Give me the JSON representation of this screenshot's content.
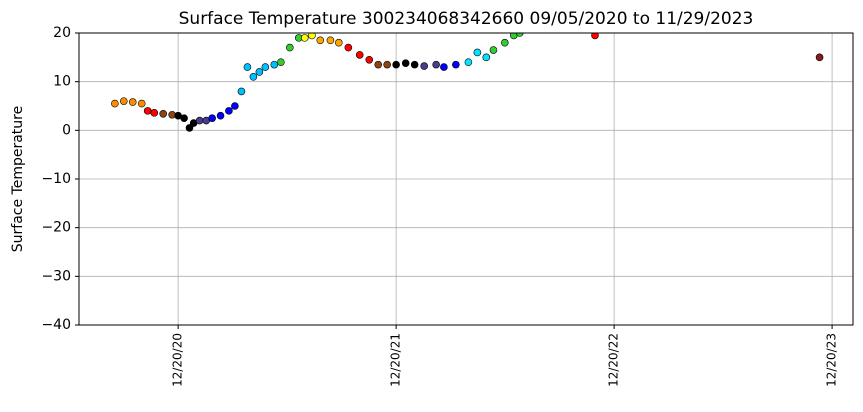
{
  "chart_data": {
    "type": "scatter",
    "title": "Surface Temperature 300234068342660  09/05/2020 to 11/29/2023",
    "y_label": "Surface Temperature",
    "xlim": [
      "2020-07-07",
      "2024-01-24"
    ],
    "xticks": [
      {
        "value": "2020-12-20",
        "label": "12/20/20"
      },
      {
        "value": "2021-12-20",
        "label": "12/20/21"
      },
      {
        "value": "2022-12-20",
        "label": "12/20/22"
      },
      {
        "value": "2023-12-20",
        "label": "12/20/23"
      }
    ],
    "ylim": [
      -40,
      20
    ],
    "yticks": [
      {
        "value": -40,
        "label": "−40"
      },
      {
        "value": -30,
        "label": "−30"
      },
      {
        "value": -20,
        "label": "−20"
      },
      {
        "value": -10,
        "label": "−10"
      },
      0,
      10,
      20
    ],
    "grid": true,
    "series": [
      {
        "color": "#ff8c00",
        "x": [
          "2020-09-05",
          "2020-09-20",
          "2020-10-05",
          "2020-10-20"
        ],
        "values": [
          5.5,
          6,
          5.8,
          5.5
        ]
      },
      {
        "color": "#ff0000",
        "x": [
          "2020-10-30",
          "2020-11-10"
        ],
        "values": [
          4,
          3.6
        ]
      },
      {
        "color": "#8b4513",
        "x": [
          "2020-11-25",
          "2020-12-10"
        ],
        "values": [
          3.4,
          3.2
        ]
      },
      {
        "color": "#000000",
        "x": [
          "2020-12-20",
          "2020-12-30",
          "2021-01-08",
          "2021-01-15"
        ],
        "values": [
          3,
          2.5,
          0.5,
          1.5
        ]
      },
      {
        "color": "#483d8b",
        "x": [
          "2021-01-25",
          "2021-02-05"
        ],
        "values": [
          2,
          2
        ]
      },
      {
        "color": "#0000ff",
        "x": [
          "2021-02-15",
          "2021-03-01",
          "2021-03-15",
          "2021-03-25"
        ],
        "values": [
          2.5,
          3,
          4,
          5
        ]
      },
      {
        "color": "#00bfff",
        "x": [
          "2021-04-05",
          "2021-04-15",
          "2021-04-25",
          "2021-05-05",
          "2021-05-15",
          "2021-05-30"
        ],
        "values": [
          8,
          13,
          11,
          12,
          13,
          13.5
        ]
      },
      {
        "color": "#32cd32",
        "x": [
          "2021-06-10",
          "2021-06-25",
          "2021-07-10"
        ],
        "values": [
          14,
          17,
          19
        ]
      },
      {
        "color": "#ffff00",
        "x": [
          "2021-07-20",
          "2021-08-01"
        ],
        "values": [
          19,
          19.5
        ]
      },
      {
        "color": "#ffa500",
        "x": [
          "2021-08-15",
          "2021-09-01",
          "2021-09-15"
        ],
        "values": [
          18.5,
          18.5,
          18
        ]
      },
      {
        "color": "#ff0000",
        "x": [
          "2021-10-01",
          "2021-10-20",
          "2021-11-05"
        ],
        "values": [
          17,
          15.5,
          14.5
        ]
      },
      {
        "color": "#8b4513",
        "x": [
          "2021-11-20",
          "2021-12-05"
        ],
        "values": [
          13.5,
          13.5
        ]
      },
      {
        "color": "#000000",
        "x": [
          "2021-12-20",
          "2022-01-05",
          "2022-01-20"
        ],
        "values": [
          13.5,
          13.8,
          13.5
        ]
      },
      {
        "color": "#483d8b",
        "x": [
          "2022-02-05",
          "2022-02-25"
        ],
        "values": [
          13.2,
          13.5
        ]
      },
      {
        "color": "#0000ff",
        "x": [
          "2022-03-10",
          "2022-03-30"
        ],
        "values": [
          13,
          13.5
        ]
      },
      {
        "color": "#00e5ff",
        "x": [
          "2022-04-20",
          "2022-05-05",
          "2022-05-20"
        ],
        "values": [
          14,
          16,
          15
        ]
      },
      {
        "color": "#32cd32",
        "x": [
          "2022-06-01",
          "2022-06-20",
          "2022-07-05",
          "2022-07-15"
        ],
        "values": [
          16.5,
          18,
          19.5,
          20
        ]
      },
      {
        "color": "#ff0000",
        "x": [
          "2022-11-18"
        ],
        "values": [
          19.5
        ]
      },
      {
        "color": "#8b1a1a",
        "x": [
          "2023-11-29"
        ],
        "values": [
          15
        ]
      }
    ]
  }
}
